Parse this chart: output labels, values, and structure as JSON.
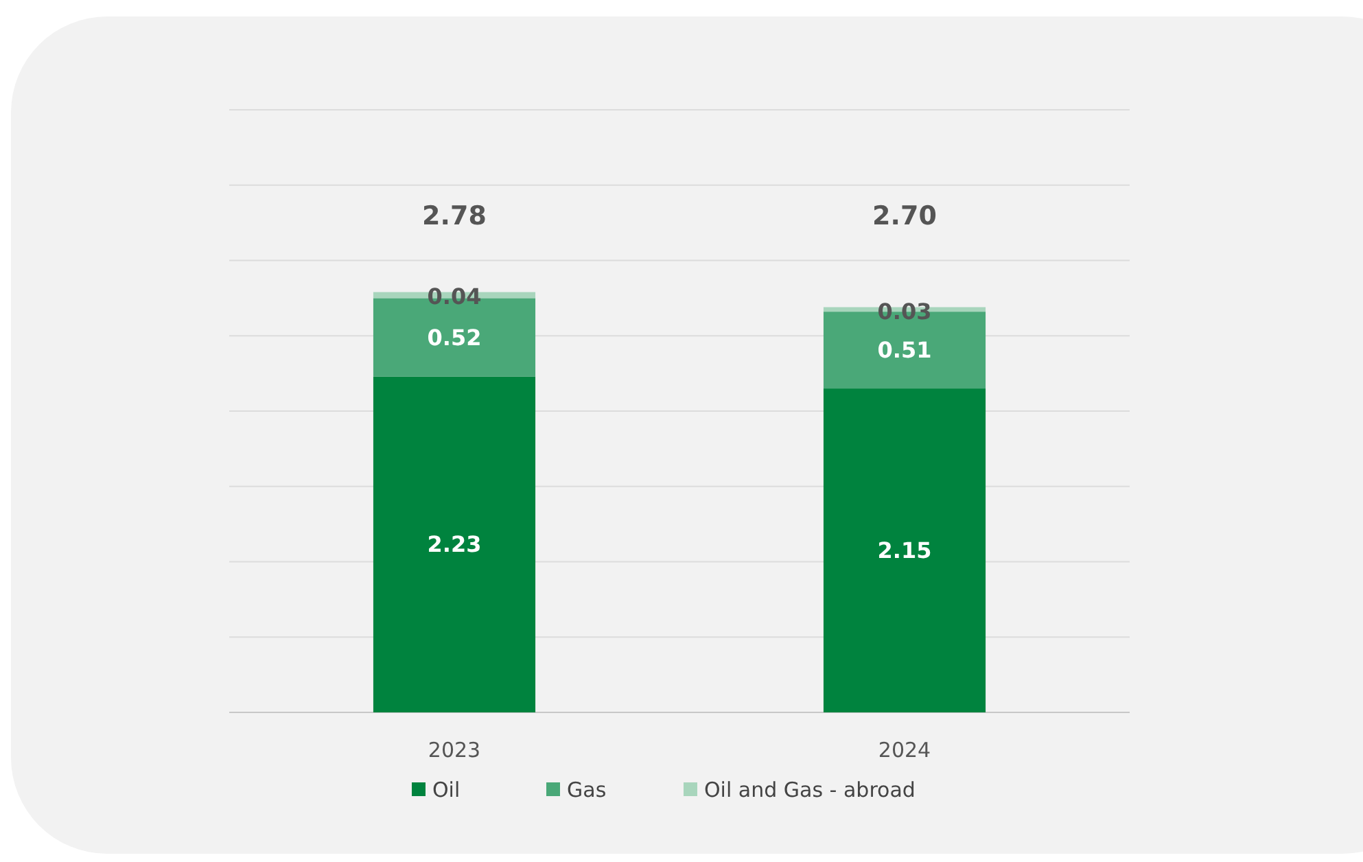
{
  "chart_data": {
    "type": "bar",
    "stacked": true,
    "categories": [
      "2023",
      "2024"
    ],
    "series": [
      {
        "name": "Oil",
        "color": "#00833e",
        "values": [
          2.23,
          2.15
        ]
      },
      {
        "name": "Gas",
        "color": "#4aa878",
        "values": [
          0.52,
          0.51
        ]
      },
      {
        "name": "Oil and Gas - abroad",
        "color": "#a8d5bc",
        "values": [
          0.04,
          0.03
        ]
      }
    ],
    "ylim": [
      0,
      4
    ],
    "yticks": [
      {
        "value": 0,
        "label": null
      },
      {
        "value": 0.5,
        "label": null
      },
      {
        "value": 1,
        "label": null
      },
      {
        "value": 1.5,
        "label": null
      },
      {
        "value": 2,
        "label": null
      },
      {
        "value": 2.5,
        "label": null
      },
      {
        "value": 3,
        "label": null
      },
      {
        "value": 3.5,
        "label": null
      },
      {
        "value": 4,
        "label": null
      }
    ],
    "grid": "y",
    "tick_labels": "x",
    "data_labels": true,
    "totals": [
      "2.78",
      "2.70"
    ],
    "legend": "bottom"
  }
}
